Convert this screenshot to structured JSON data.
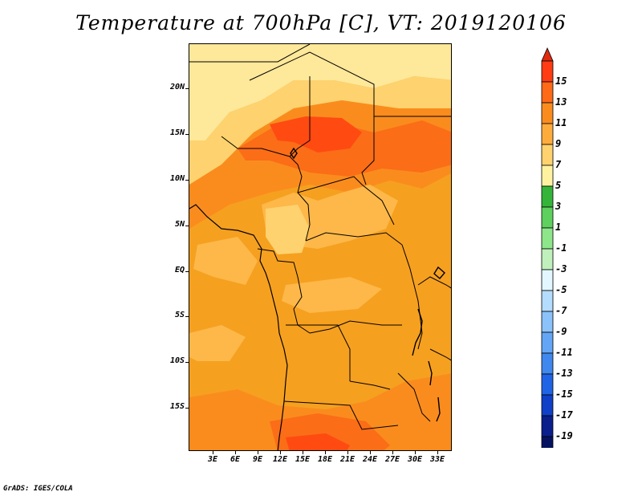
{
  "title": "Temperature at 700hPa [C], VT: 2019120106",
  "credit": "GrADS: IGES/COLA",
  "lat_labels": [
    "20N",
    "15N",
    "10N",
    "5N",
    "EQ",
    "5S",
    "10S",
    "15S"
  ],
  "lon_labels": [
    "3E",
    "6E",
    "9E",
    "12E",
    "15E",
    "18E",
    "21E",
    "24E",
    "27E",
    "30E",
    "33E"
  ],
  "colorbar": {
    "labels": [
      "15",
      "13",
      "11",
      "9",
      "7",
      "5",
      "3",
      "1",
      "-1",
      "-3",
      "-5",
      "-7",
      "-9",
      "-11",
      "-13",
      "-15",
      "-17",
      "-19"
    ],
    "top_color": "#e02a10",
    "bottom_color": "#dcdcff",
    "colors": [
      "#ff3c14",
      "#ff6a18",
      "#fa8c1e",
      "#fdac3c",
      "#fed26e",
      "#fef2a0",
      "#34b53a",
      "#5dd05d",
      "#8ee68a",
      "#c0f0bc",
      "#e2f7ff",
      "#b4dcff",
      "#8cc2fa",
      "#64a6f5",
      "#4088ee",
      "#2064e6",
      "#1040c8",
      "#0a1e8c",
      "#061260"
    ]
  },
  "field_colors": {
    "t5": "#fee89a",
    "t7": "#fed26e",
    "t9": "#fdb849",
    "t10": "#f6a020",
    "t11": "#fa8c1e",
    "t13": "#fb6d17",
    "t15": "#ff4a12"
  }
}
